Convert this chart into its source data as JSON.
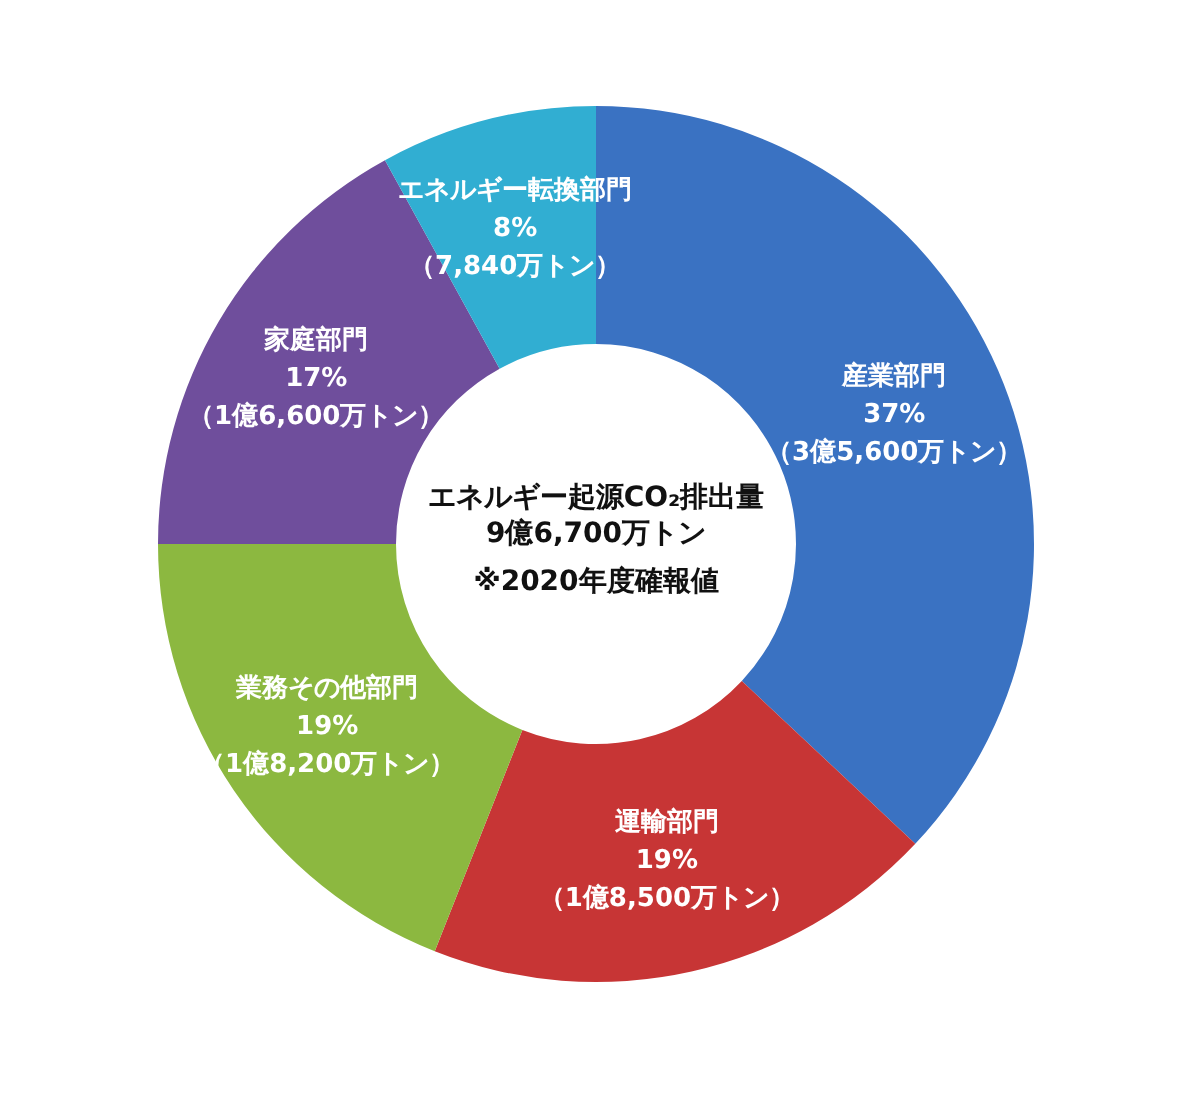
{
  "chart_data": {
    "type": "donut",
    "title": "エネルギー起源CO₂排出量",
    "subtitle": "9億6,700万トン",
    "annotations": [
      "※2020年度確報値"
    ],
    "categories": [
      "産業部門",
      "運輸部門",
      "業務その他部門",
      "家庭部門",
      "エネルギー転換部門"
    ],
    "values": [
      37,
      19,
      19,
      17,
      8
    ],
    "value_labels": [
      "37%\n（3億5,600万トン）",
      "19%\n（1億8,500万トン）",
      "19%\n（1億8,200万トン）",
      "17%\n（1億6,600万トン）",
      "8%\n（7,840万トン）"
    ],
    "colors": [
      "#3a72c2",
      "#c73535",
      "#8cb840",
      "#6f4e9c",
      "#31aed2"
    ]
  }
}
